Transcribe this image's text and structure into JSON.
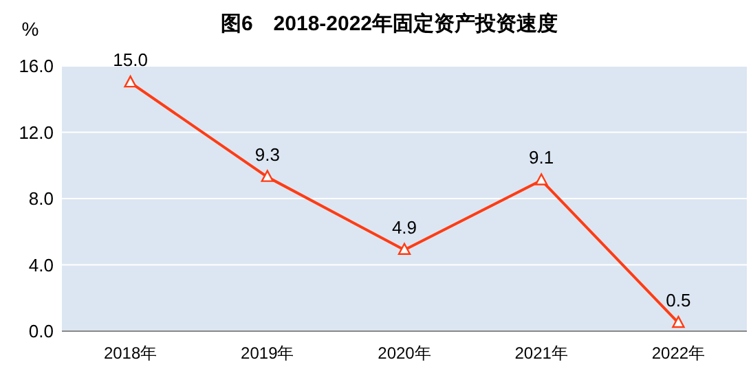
{
  "chart_data": {
    "type": "line",
    "title": "图6　2018-2022年固定资产投资速度",
    "ylabel": "%",
    "categories": [
      "2018年",
      "2019年",
      "2020年",
      "2021年",
      "2022年"
    ],
    "series": [
      {
        "color": "#ff3c14",
        "values": [
          15.0,
          9.3,
          4.9,
          9.1,
          0.5
        ],
        "value_labels": [
          "15.0",
          "9.3",
          "4.9",
          "9.1",
          "0.5"
        ]
      }
    ],
    "ylim": [
      0,
      16
    ],
    "yticks": [
      {
        "value": 0,
        "label": "0.0"
      },
      {
        "value": 4,
        "label": "4.0"
      },
      {
        "value": 8,
        "label": "8.0"
      },
      {
        "value": 12,
        "label": "12.0"
      },
      {
        "value": 16,
        "label": "16.0"
      }
    ],
    "grid": "y",
    "marker": "triangle",
    "line_style": "solid"
  }
}
